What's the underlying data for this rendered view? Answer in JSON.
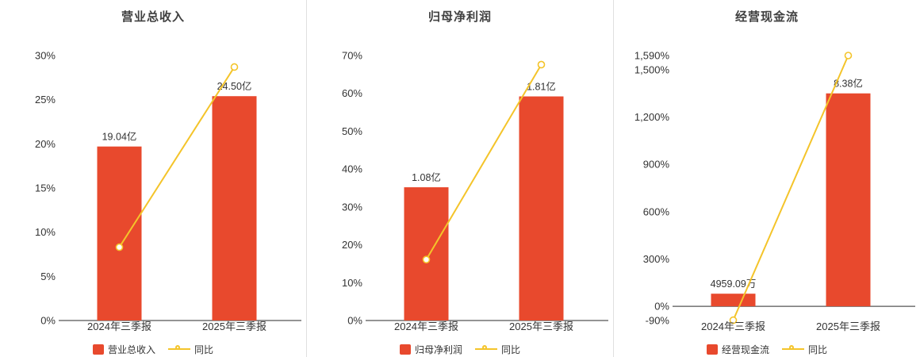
{
  "colors": {
    "bar": "#e8492d",
    "line": "#f4c42a",
    "axis": "#555555",
    "text": "#333333",
    "title": "#404040",
    "divider": "#e0e0e0",
    "background": "#ffffff"
  },
  "chart_data": [
    {
      "type": "bar+line",
      "title": "营业总收入",
      "categories": [
        "2024年三季报",
        "2025年三季报"
      ],
      "bar_series": {
        "name": "营业总收入",
        "value_labels": [
          "19.04亿",
          "24.50亿"
        ],
        "plot_heights": [
          19.7,
          25.4
        ]
      },
      "line_series": {
        "name": "同比",
        "values": [
          8.3,
          28.7
        ],
        "unit": "%"
      },
      "ylim": [
        0,
        30
      ],
      "yticks": [
        {
          "v": 0,
          "label": "0%"
        },
        {
          "v": 5,
          "label": "5%"
        },
        {
          "v": 10,
          "label": "10%"
        },
        {
          "v": 15,
          "label": "15%"
        },
        {
          "v": 20,
          "label": "20%"
        },
        {
          "v": 25,
          "label": "25%"
        },
        {
          "v": 30,
          "label": "30%"
        }
      ],
      "legend_position": "bottom"
    },
    {
      "type": "bar+line",
      "title": "归母净利润",
      "categories": [
        "2024年三季报",
        "2025年三季报"
      ],
      "bar_series": {
        "name": "归母净利润",
        "value_labels": [
          "1.08亿",
          "1.81亿"
        ],
        "plot_heights": [
          35.2,
          59.2
        ]
      },
      "line_series": {
        "name": "同比",
        "values": [
          16.1,
          67.6
        ],
        "unit": "%"
      },
      "ylim": [
        0,
        70
      ],
      "yticks": [
        {
          "v": 0,
          "label": "0%"
        },
        {
          "v": 10,
          "label": "10%"
        },
        {
          "v": 20,
          "label": "20%"
        },
        {
          "v": 30,
          "label": "30%"
        },
        {
          "v": 40,
          "label": "40%"
        },
        {
          "v": 50,
          "label": "50%"
        },
        {
          "v": 60,
          "label": "60%"
        },
        {
          "v": 70,
          "label": "70%"
        }
      ],
      "legend_position": "bottom"
    },
    {
      "type": "bar+line",
      "title": "经营现金流",
      "categories": [
        "2024年三季报",
        "2025年三季报"
      ],
      "bar_series": {
        "name": "经营现金流",
        "value_labels": [
          "4959.09万",
          "8.38亿"
        ],
        "plot_heights": [
          80,
          1350
        ]
      },
      "line_series": {
        "name": "同比",
        "values": [
          -88,
          1590
        ],
        "unit": "%"
      },
      "ylim": [
        -90,
        1590
      ],
      "yticks": [
        {
          "v": -90,
          "label": "-90%"
        },
        {
          "v": 0,
          "label": "0%"
        },
        {
          "v": 300,
          "label": "300%"
        },
        {
          "v": 600,
          "label": "600%"
        },
        {
          "v": 900,
          "label": "900%"
        },
        {
          "v": 1200,
          "label": "1,200%"
        },
        {
          "v": 1500,
          "label": "1,500%"
        },
        {
          "v": 1590,
          "label": "1,590%"
        }
      ],
      "legend_position": "bottom"
    }
  ]
}
